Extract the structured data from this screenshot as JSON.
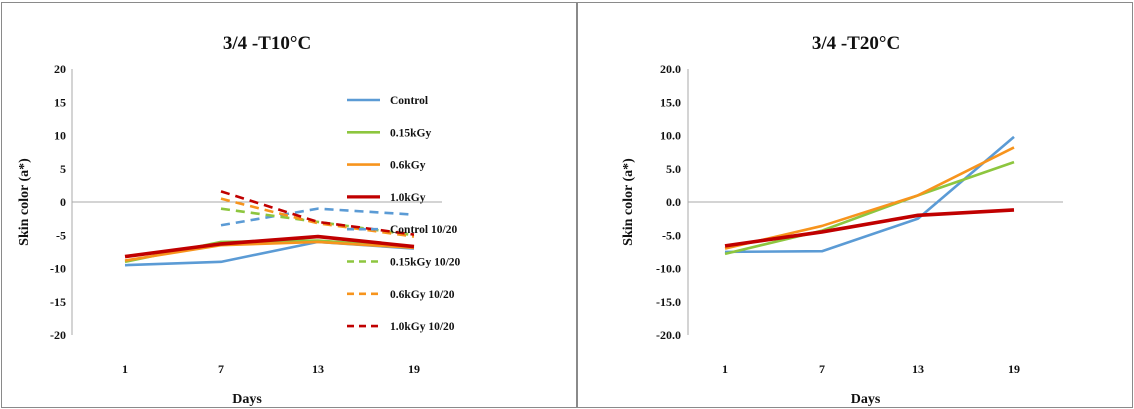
{
  "colors": {
    "control": "#5b9bd5",
    "g015": "#8dc63f",
    "g06": "#f7941d",
    "g10": "#c00000"
  },
  "chart_data": [
    {
      "type": "line",
      "title": "3/4 -T10°C",
      "xlabel": "Days",
      "ylabel": "Skin color (a*)",
      "categories": [
        "1",
        "7",
        "13",
        "19"
      ],
      "ylim": [
        -20,
        20
      ],
      "yticks": [
        "20",
        "15",
        "10",
        "5",
        "0",
        "-5",
        "-10",
        "-15",
        "-20"
      ],
      "grid": false,
      "legend_position": "right",
      "series": [
        {
          "name": "Control",
          "key": "control",
          "dash": false,
          "values": [
            -9.5,
            -9.0,
            -6.0,
            -7.0
          ]
        },
        {
          "name": "0.15kGy",
          "key": "g015",
          "dash": false,
          "values": [
            -9.0,
            -6.0,
            -5.8,
            -6.8
          ]
        },
        {
          "name": "0.6kGy",
          "key": "g06",
          "dash": false,
          "values": [
            -8.8,
            -6.5,
            -6.0,
            -6.9
          ]
        },
        {
          "name": "1.0kGy",
          "key": "g10",
          "dash": false,
          "values": [
            -8.2,
            -6.3,
            -5.2,
            -6.7
          ]
        },
        {
          "name": "Control 10/20",
          "key": "control",
          "dash": true,
          "values": [
            null,
            -3.5,
            -1.0,
            -1.9
          ]
        },
        {
          "name": "0.15kGy 10/20",
          "key": "g015",
          "dash": true,
          "values": [
            null,
            -1.0,
            -3.0,
            -5.0
          ]
        },
        {
          "name": "0.6kGy 10/20",
          "key": "g06",
          "dash": true,
          "values": [
            null,
            0.5,
            -3.2,
            -5.2
          ]
        },
        {
          "name": "1.0kGy 10/20",
          "key": "g10",
          "dash": true,
          "values": [
            null,
            1.6,
            -3.0,
            -4.9
          ]
        }
      ]
    },
    {
      "type": "line",
      "title": "3/4 -T20°C",
      "xlabel": "Days",
      "ylabel": "Skin color (a*)",
      "categories": [
        "1",
        "7",
        "13",
        "19"
      ],
      "ylim": [
        -20,
        20
      ],
      "yticks": [
        "20.0",
        "15.0",
        "10.0",
        "5.0",
        "0.0",
        "-5.0",
        "-10.0",
        "-15.0",
        "-20.0"
      ],
      "grid": false,
      "legend_position": "none",
      "series": [
        {
          "key": "control",
          "dash": false,
          "values": [
            -7.5,
            -7.4,
            -2.5,
            9.8
          ]
        },
        {
          "key": "g015",
          "dash": false,
          "values": [
            -7.8,
            -4.3,
            1.0,
            6.0
          ]
        },
        {
          "key": "g06",
          "dash": false,
          "values": [
            -7.0,
            -3.6,
            1.0,
            8.2
          ]
        },
        {
          "key": "g10",
          "dash": false,
          "values": [
            -6.6,
            -4.5,
            -2.0,
            -1.2
          ]
        }
      ]
    }
  ]
}
